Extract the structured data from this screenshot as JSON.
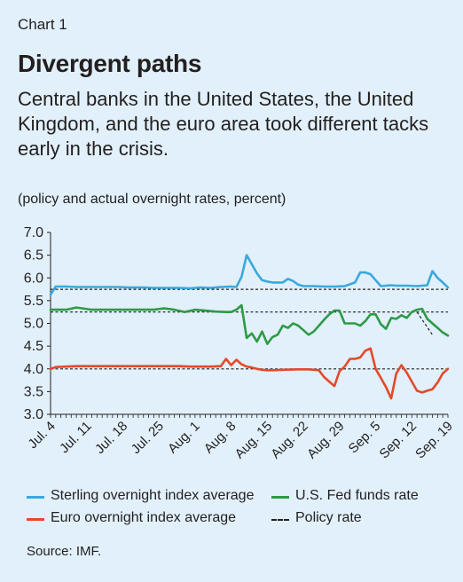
{
  "chart_label": "Chart 1",
  "title": "Divergent paths",
  "subtitle": "Central banks in the United States, the United Kingdom, and the euro area took different tacks early in the crisis.",
  "units_note": "(policy and actual overnight rates, percent)",
  "source": "Source: IMF.",
  "colors": {
    "background": "#e1f0fa",
    "sterling": "#3aa8dc",
    "euro": "#e34a2a",
    "fed": "#2e9a46",
    "policy": "#231f20"
  },
  "chart_data": {
    "type": "line",
    "title": "Divergent paths",
    "xlabel": "",
    "ylabel": "",
    "ylim": [
      3.0,
      7.0
    ],
    "yticks": [
      "7.0",
      "6.5",
      "6.0",
      "5.5",
      "5.0",
      "4.5",
      "4.0",
      "3.5",
      "3.0"
    ],
    "x_tick_labels": [
      "Jul. 4",
      "Jul. 11",
      "Jul. 18",
      "Jul. 25",
      "Aug. 1",
      "Aug. 8",
      "Aug. 15",
      "Aug. 22",
      "Aug. 29",
      "Sep. 5",
      "Sep. 12",
      "Sep. 19"
    ],
    "x_range_days": [
      0,
      77
    ],
    "x_tick_days": [
      0,
      7,
      14,
      21,
      28,
      35,
      42,
      49,
      56,
      63,
      70,
      77
    ],
    "grid": false,
    "legend_position": "bottom",
    "series": [
      {
        "name": "Sterling overnight index average",
        "color": "#3aa8dc",
        "style": "solid",
        "x": [
          0,
          1,
          3,
          5,
          8,
          10,
          13,
          15,
          18,
          20,
          23,
          25,
          27,
          29,
          31,
          33,
          35,
          36,
          37,
          38,
          39,
          40,
          41,
          42,
          43,
          45,
          46,
          47,
          48,
          49,
          51,
          53,
          55,
          57,
          59,
          60,
          61,
          62,
          63,
          64,
          66,
          67,
          69,
          71,
          73,
          74,
          75,
          76,
          77
        ],
        "y": [
          5.63,
          5.81,
          5.81,
          5.8,
          5.8,
          5.8,
          5.8,
          5.79,
          5.79,
          5.78,
          5.78,
          5.78,
          5.77,
          5.79,
          5.78,
          5.8,
          5.81,
          5.8,
          6.02,
          6.5,
          6.3,
          6.1,
          5.95,
          5.92,
          5.9,
          5.9,
          5.98,
          5.93,
          5.85,
          5.82,
          5.82,
          5.81,
          5.81,
          5.82,
          5.9,
          6.12,
          6.12,
          6.08,
          5.95,
          5.82,
          5.84,
          5.83,
          5.83,
          5.82,
          5.84,
          6.15,
          6.0,
          5.9,
          5.79
        ]
      },
      {
        "name": "U.S. Fed funds rate",
        "color": "#2e9a46",
        "style": "solid",
        "x": [
          0,
          3,
          5,
          8,
          10,
          13,
          15,
          18,
          20,
          22,
          24,
          26,
          28,
          30,
          32,
          34,
          35,
          36,
          37,
          38,
          39,
          40,
          41,
          42,
          43,
          44,
          45,
          46,
          47,
          48,
          49,
          50,
          51,
          52,
          53,
          54,
          55,
          56,
          57,
          58,
          59,
          60,
          61,
          62,
          63,
          64,
          65,
          66,
          67,
          68,
          69,
          70,
          71,
          72,
          73,
          74,
          75,
          76,
          77
        ],
        "y": [
          5.3,
          5.3,
          5.35,
          5.3,
          5.3,
          5.3,
          5.3,
          5.3,
          5.3,
          5.33,
          5.3,
          5.25,
          5.3,
          5.28,
          5.26,
          5.25,
          5.25,
          5.3,
          5.4,
          4.68,
          4.78,
          4.6,
          4.82,
          4.55,
          4.7,
          4.75,
          4.95,
          4.9,
          5.0,
          4.95,
          4.85,
          4.75,
          4.82,
          4.95,
          5.08,
          5.2,
          5.28,
          5.28,
          5.0,
          5.0,
          5.0,
          4.95,
          5.05,
          5.2,
          5.2,
          4.98,
          4.88,
          5.12,
          5.1,
          5.18,
          5.12,
          5.25,
          5.3,
          5.32,
          5.1,
          5.0,
          4.9,
          4.8,
          4.73
        ]
      },
      {
        "name": "Euro overnight index average",
        "color": "#e34a2a",
        "style": "solid",
        "x": [
          0,
          1,
          3,
          5,
          8,
          10,
          13,
          15,
          18,
          20,
          23,
          25,
          27,
          29,
          31,
          33,
          34,
          35,
          36,
          37,
          38,
          39,
          40,
          41,
          42,
          43,
          45,
          48,
          50,
          52,
          53,
          54,
          55,
          56,
          57,
          58,
          59,
          60,
          61,
          62,
          63,
          64,
          65,
          66,
          67,
          68,
          69,
          70,
          71,
          72,
          73,
          74,
          75,
          76,
          77
        ],
        "y": [
          4.0,
          4.04,
          4.05,
          4.06,
          4.06,
          4.06,
          4.06,
          4.06,
          4.06,
          4.06,
          4.06,
          4.06,
          4.05,
          4.05,
          4.05,
          4.06,
          4.22,
          4.08,
          4.2,
          4.1,
          4.05,
          4.03,
          4.0,
          3.98,
          3.97,
          3.97,
          3.98,
          3.99,
          3.99,
          3.97,
          3.82,
          3.72,
          3.62,
          3.95,
          4.05,
          4.22,
          4.22,
          4.25,
          4.4,
          4.45,
          4.0,
          3.8,
          3.6,
          3.35,
          3.9,
          4.08,
          3.92,
          3.72,
          3.52,
          3.48,
          3.52,
          3.55,
          3.7,
          3.9,
          4.0
        ]
      },
      {
        "name": "Policy rate",
        "color": "#231f20",
        "style": "dashed",
        "segments": [
          {
            "x": [
              0,
              77
            ],
            "y": [
              5.75,
              5.75
            ]
          },
          {
            "x": [
              0,
              77
            ],
            "y": [
              5.25,
              5.25
            ]
          },
          {
            "x": [
              0,
              77
            ],
            "y": [
              4.0,
              4.0
            ]
          },
          {
            "x": [
              71,
              74
            ],
            "y": [
              5.25,
              4.75
            ]
          }
        ]
      }
    ]
  }
}
